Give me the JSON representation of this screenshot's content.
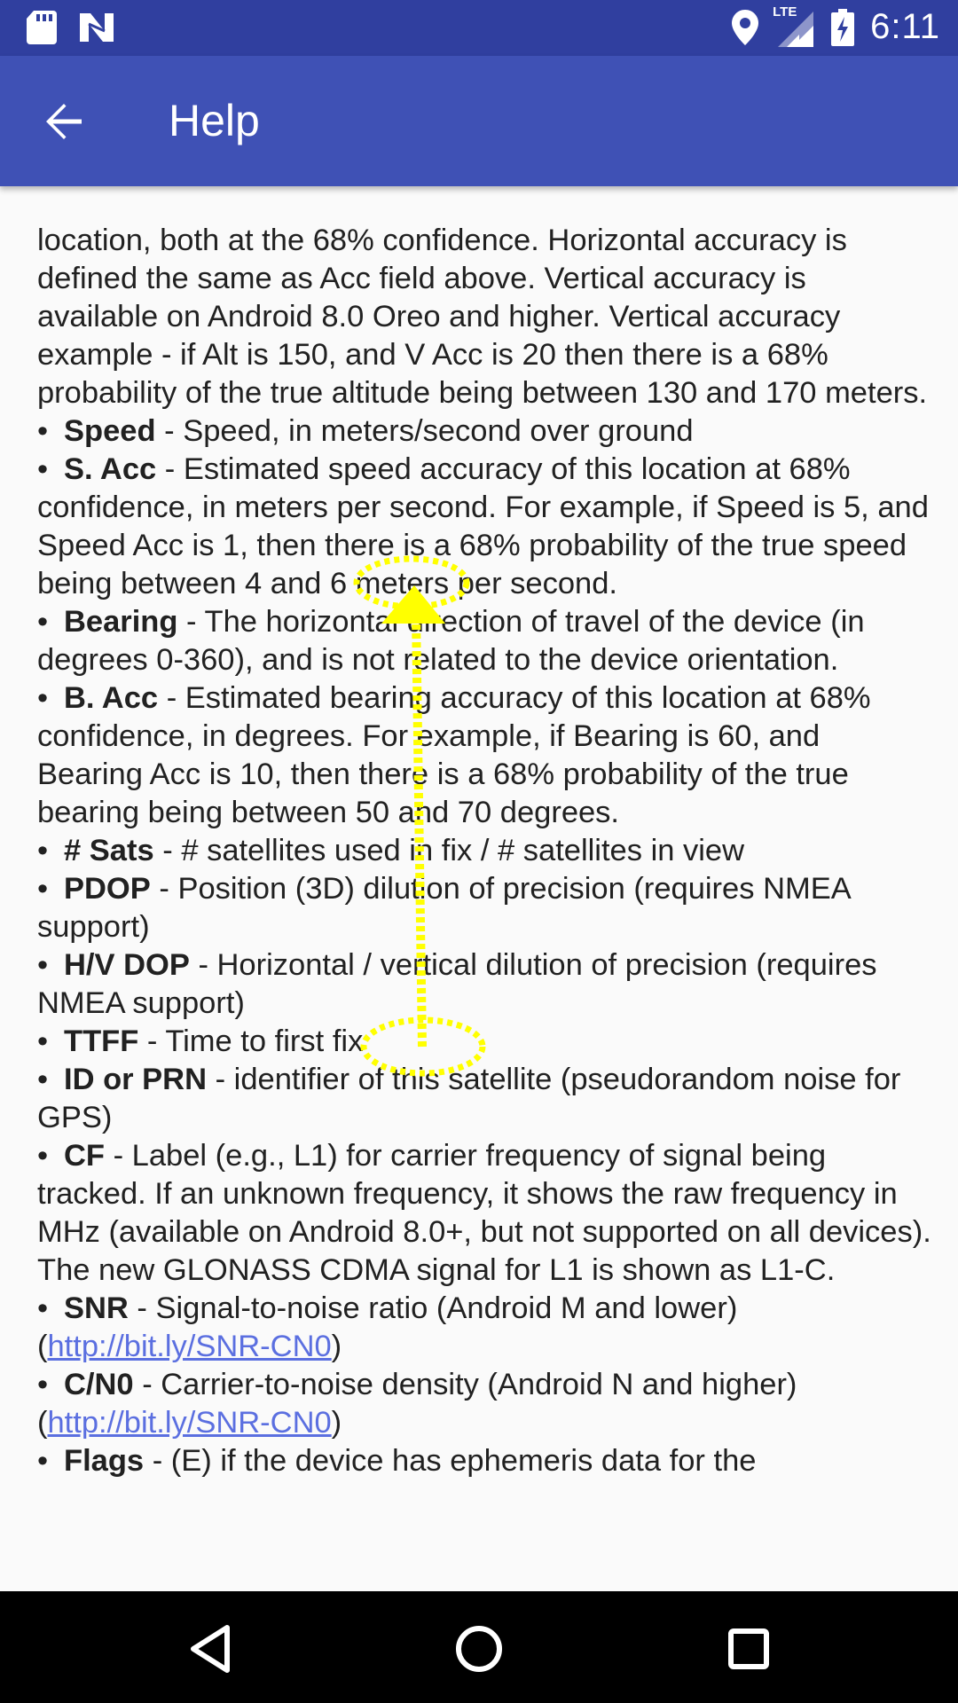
{
  "status_bar": {
    "time": "6:11",
    "network_label": "LTE",
    "left_icons": [
      "sd-card-icon",
      "n-logo-icon"
    ],
    "right_icons": [
      "location-pin-icon",
      "signal-icon",
      "battery-charging-icon"
    ]
  },
  "app_bar": {
    "title": "Help",
    "back_icon": "back-arrow-icon"
  },
  "content": {
    "intro_lines": [
      "location, both at the 68% confidence. Horizontal accuracy is defined the same as Acc field above. Vertical accuracy is available on Android 8.0 Oreo and higher. Vertical accuracy example - if Alt is 150, and V Acc is 20 then there is a 68% probability of the true altitude being between 130 and 170 meters."
    ],
    "items": [
      {
        "term": "Speed",
        "desc": " - Speed, in meters/second over ground"
      },
      {
        "term": "S. Acc",
        "desc": " - Estimated speed accuracy of this location at 68% confidence, in meters per second. For example, if Speed is 5, and Speed Acc is 1, then there is a 68% probability of the true speed being between 4 and 6 meters per second."
      },
      {
        "term": "Bearing",
        "desc": " - The horizontal direction of travel of the device (in degrees 0-360), and is not related to the device orientation."
      },
      {
        "term": "B. Acc",
        "desc": " - Estimated bearing accuracy of this location at 68% confidence, in degrees. For example, if Bearing is 60, and Bearing Acc is 10, then there is a 68% probability of the true bearing being between 50 and 70 degrees."
      },
      {
        "term": "# Sats",
        "desc": " - # satellites used in fix / # satellites in view"
      },
      {
        "term": "PDOP",
        "desc": " - Position (3D) dilution of precision (requires NMEA support)"
      },
      {
        "term": "H/V DOP",
        "desc": " - Horizontal / vertical dilution of precision (requires NMEA support)"
      },
      {
        "term": "TTFF",
        "desc": " - Time to first fix"
      },
      {
        "term": "ID or PRN",
        "desc": " - identifier of this satellite (pseudorandom noise for GPS)"
      },
      {
        "term": "CF",
        "desc": " - Label (e.g., L1) for carrier frequency of signal being tracked. If an unknown frequency, it shows the raw frequency in MHz (available on Android 8.0+, but not supported on all devices). The new GLONASS CDMA signal for L1 is shown as L1-C."
      },
      {
        "term": "SNR",
        "desc": " - Signal-to-noise ratio (Android M and lower)",
        "link_open": "(",
        "link": "http://bit.ly/SNR-CN0",
        "link_close": ")"
      },
      {
        "term": "C/N0",
        "desc": " - Carrier-to-noise density (Android N and higher)",
        "link_open": "(",
        "link": "http://bit.ly/SNR-CN0",
        "link_close": ")"
      },
      {
        "term": "Flags",
        "desc": " - (E) if the device has ephemeris data for the"
      }
    ],
    "bullet": "•"
  },
  "gesture": {
    "type": "swipe-up",
    "color": "#ffff00"
  },
  "nav_bar": {
    "buttons": [
      "back-triangle-icon",
      "home-circle-icon",
      "recents-square-icon"
    ]
  },
  "colors": {
    "status_bar": "#303f9f",
    "app_bar": "#3f51b5",
    "link": "#5b6fe0",
    "text": "#212121"
  }
}
